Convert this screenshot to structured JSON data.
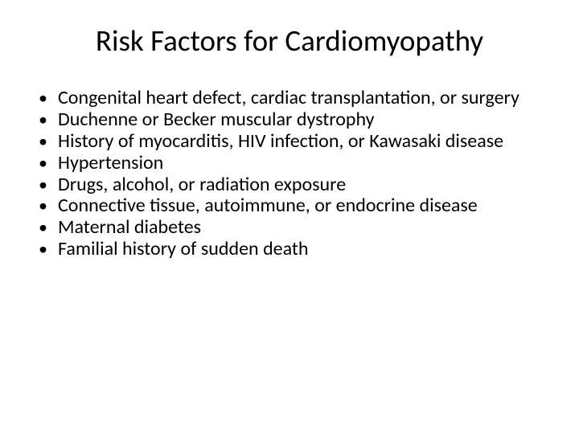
{
  "slide": {
    "title": "Risk Factors for Cardiomyopathy",
    "title_fontsize": 37,
    "title_color": "#000000",
    "body_fontsize": 24,
    "body_color": "#000000",
    "background_color": "#ffffff",
    "bullets": [
      "Congenital heart defect, cardiac transplantation, or surgery",
      "Duchenne or Becker muscular dystrophy",
      "History of myocarditis, HIV infection, or Kawasaki disease",
      "Hypertension",
      "Drugs, alcohol, or radiation exposure",
      "Connective tissue, autoimmune, or endocrine disease",
      "Maternal diabetes",
      "Familial history of sudden death"
    ]
  }
}
